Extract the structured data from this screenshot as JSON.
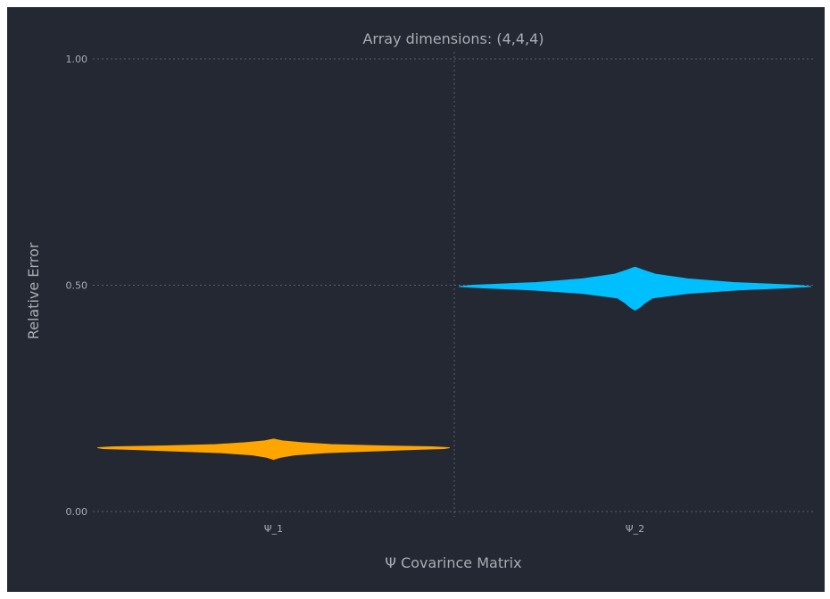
{
  "chart_data": {
    "type": "violin",
    "title": "Array dimensions: (4,4,4)",
    "xlabel": "Ψ Covarince Matrix",
    "ylabel": "Relative Error",
    "categories": [
      "Ψ_1",
      "Ψ_2"
    ],
    "ylim": [
      0.0,
      1.0
    ],
    "yticks": [
      0.0,
      0.5,
      1.0
    ],
    "ytick_labels": [
      "0.00",
      "0.50",
      "1.00"
    ],
    "grid": true,
    "series": [
      {
        "category": "Ψ_1",
        "color": "#ffa500",
        "profile": [
          {
            "y": 0.115,
            "w": 0.0
          },
          {
            "y": 0.12,
            "w": 0.04
          },
          {
            "y": 0.125,
            "w": 0.12
          },
          {
            "y": 0.13,
            "w": 0.3
          },
          {
            "y": 0.134,
            "w": 0.58
          },
          {
            "y": 0.137,
            "w": 0.8
          },
          {
            "y": 0.139,
            "w": 0.97
          },
          {
            "y": 0.141,
            "w": 1.0
          },
          {
            "y": 0.143,
            "w": 0.9
          },
          {
            "y": 0.145,
            "w": 0.62
          },
          {
            "y": 0.148,
            "w": 0.33
          },
          {
            "y": 0.152,
            "w": 0.16
          },
          {
            "y": 0.156,
            "w": 0.05
          },
          {
            "y": 0.16,
            "w": 0.0
          }
        ]
      },
      {
        "category": "Ψ_2",
        "color": "#00bfff",
        "profile": [
          {
            "y": 0.445,
            "w": 0.0
          },
          {
            "y": 0.452,
            "w": 0.03
          },
          {
            "y": 0.462,
            "w": 0.06
          },
          {
            "y": 0.472,
            "w": 0.1
          },
          {
            "y": 0.482,
            "w": 0.3
          },
          {
            "y": 0.49,
            "w": 0.6
          },
          {
            "y": 0.494,
            "w": 0.86
          },
          {
            "y": 0.497,
            "w": 1.0
          },
          {
            "y": 0.5,
            "w": 0.92
          },
          {
            "y": 0.506,
            "w": 0.56
          },
          {
            "y": 0.514,
            "w": 0.3
          },
          {
            "y": 0.524,
            "w": 0.12
          },
          {
            "y": 0.533,
            "w": 0.05
          },
          {
            "y": 0.54,
            "w": 0.0
          }
        ]
      }
    ]
  }
}
